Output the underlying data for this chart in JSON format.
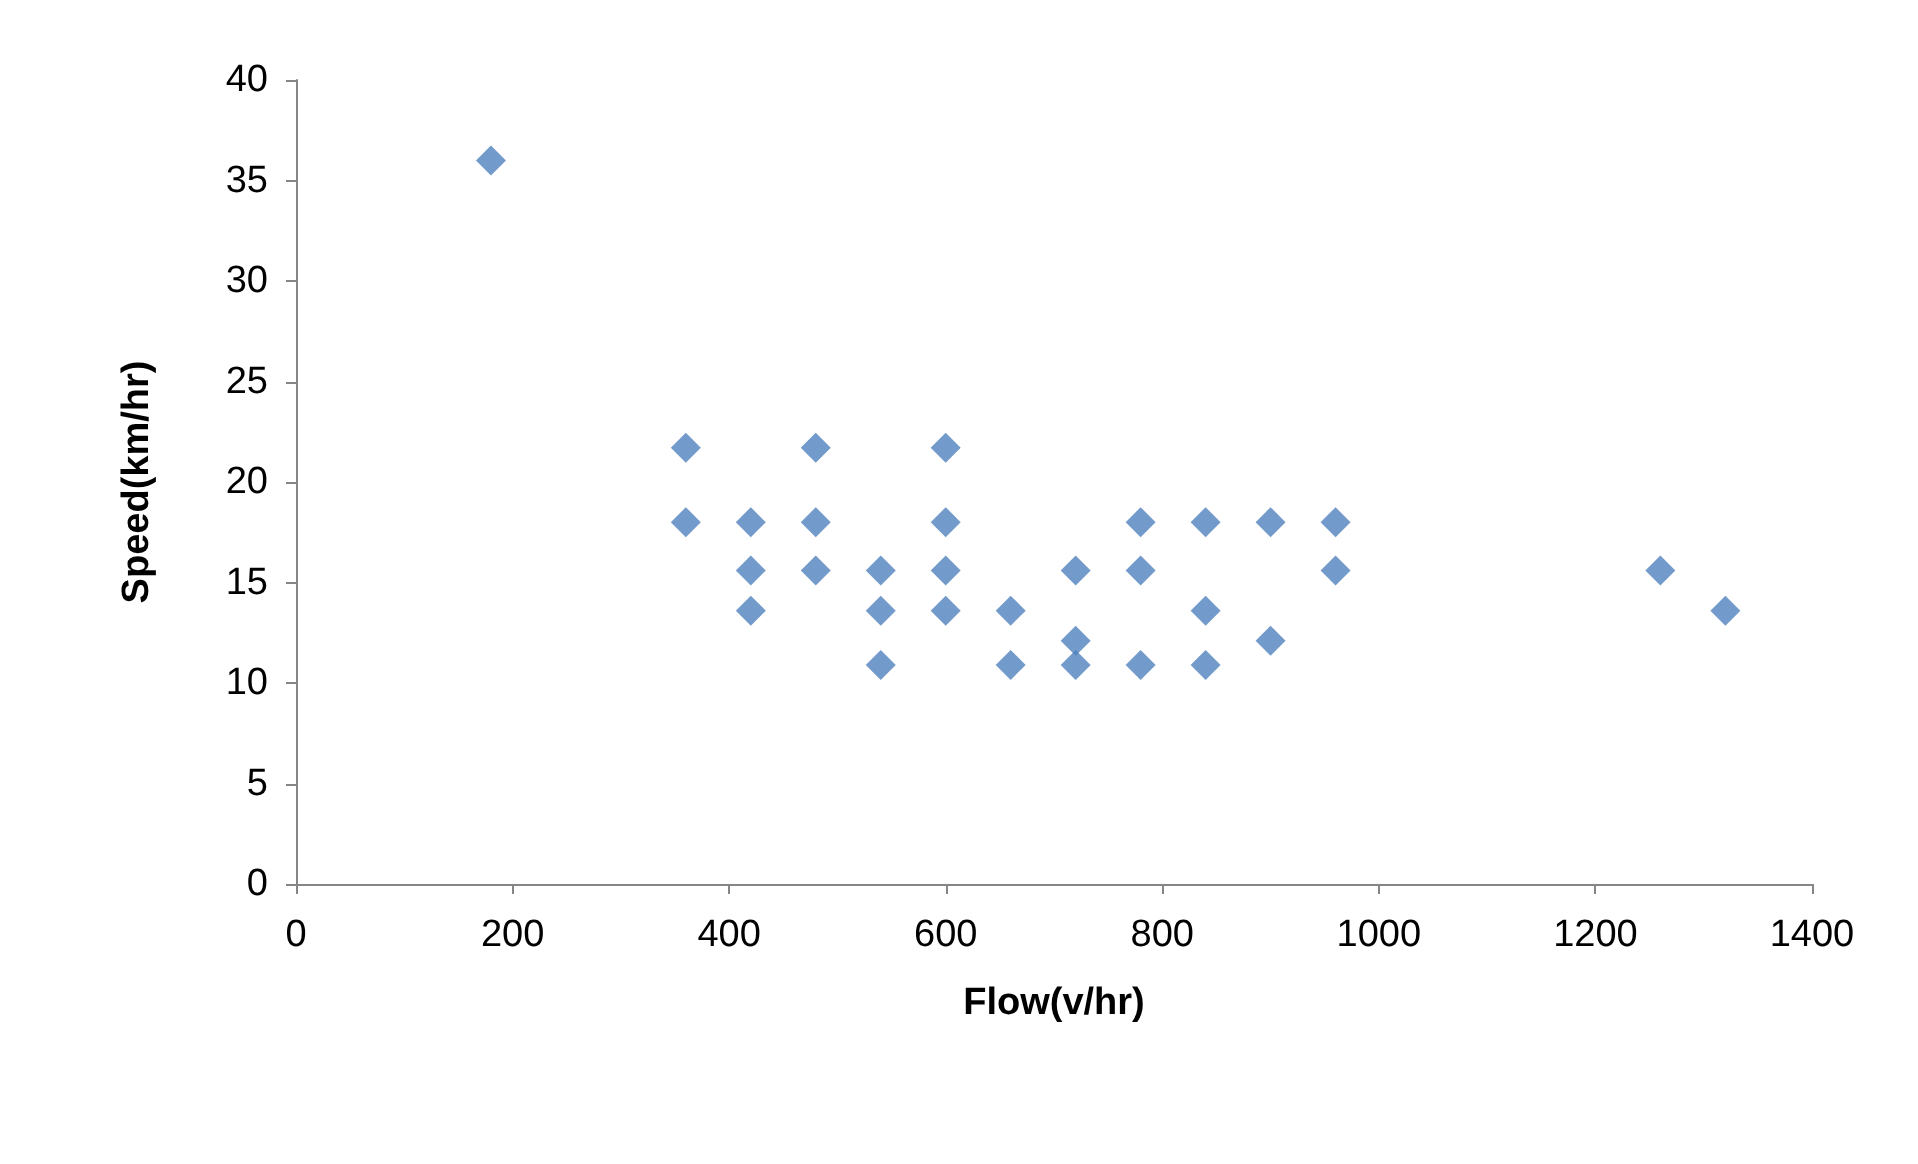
{
  "chart_data": {
    "type": "scatter",
    "xlabel": "Flow(v/hr)",
    "ylabel": "Speed(km/hr)",
    "x": [
      180,
      360,
      360,
      420,
      420,
      420,
      480,
      480,
      480,
      540,
      540,
      540,
      600,
      600,
      600,
      600,
      660,
      660,
      720,
      720,
      720,
      780,
      780,
      780,
      840,
      840,
      840,
      900,
      900,
      960,
      960,
      1260,
      1320
    ],
    "series": [
      {
        "color": "#4f81bd",
        "values": [
          36,
          21.7,
          18,
          18,
          15.6,
          13.6,
          21.7,
          18,
          15.6,
          15.6,
          13.6,
          10.9,
          21.7,
          18,
          15.6,
          13.6,
          13.6,
          10.9,
          15.6,
          12.1,
          10.9,
          18,
          15.6,
          10.9,
          18,
          13.6,
          10.9,
          18,
          12.1,
          18,
          15.6,
          15.6,
          13.6
        ]
      }
    ],
    "xlim": [
      0,
      1400
    ],
    "xticks": [
      0,
      200,
      400,
      600,
      800,
      1000,
      1200,
      1400
    ],
    "ylim": [
      0,
      40
    ],
    "yticks": [
      0,
      5,
      10,
      15,
      20,
      25,
      30,
      35,
      40
    ],
    "marker": "diamond"
  }
}
